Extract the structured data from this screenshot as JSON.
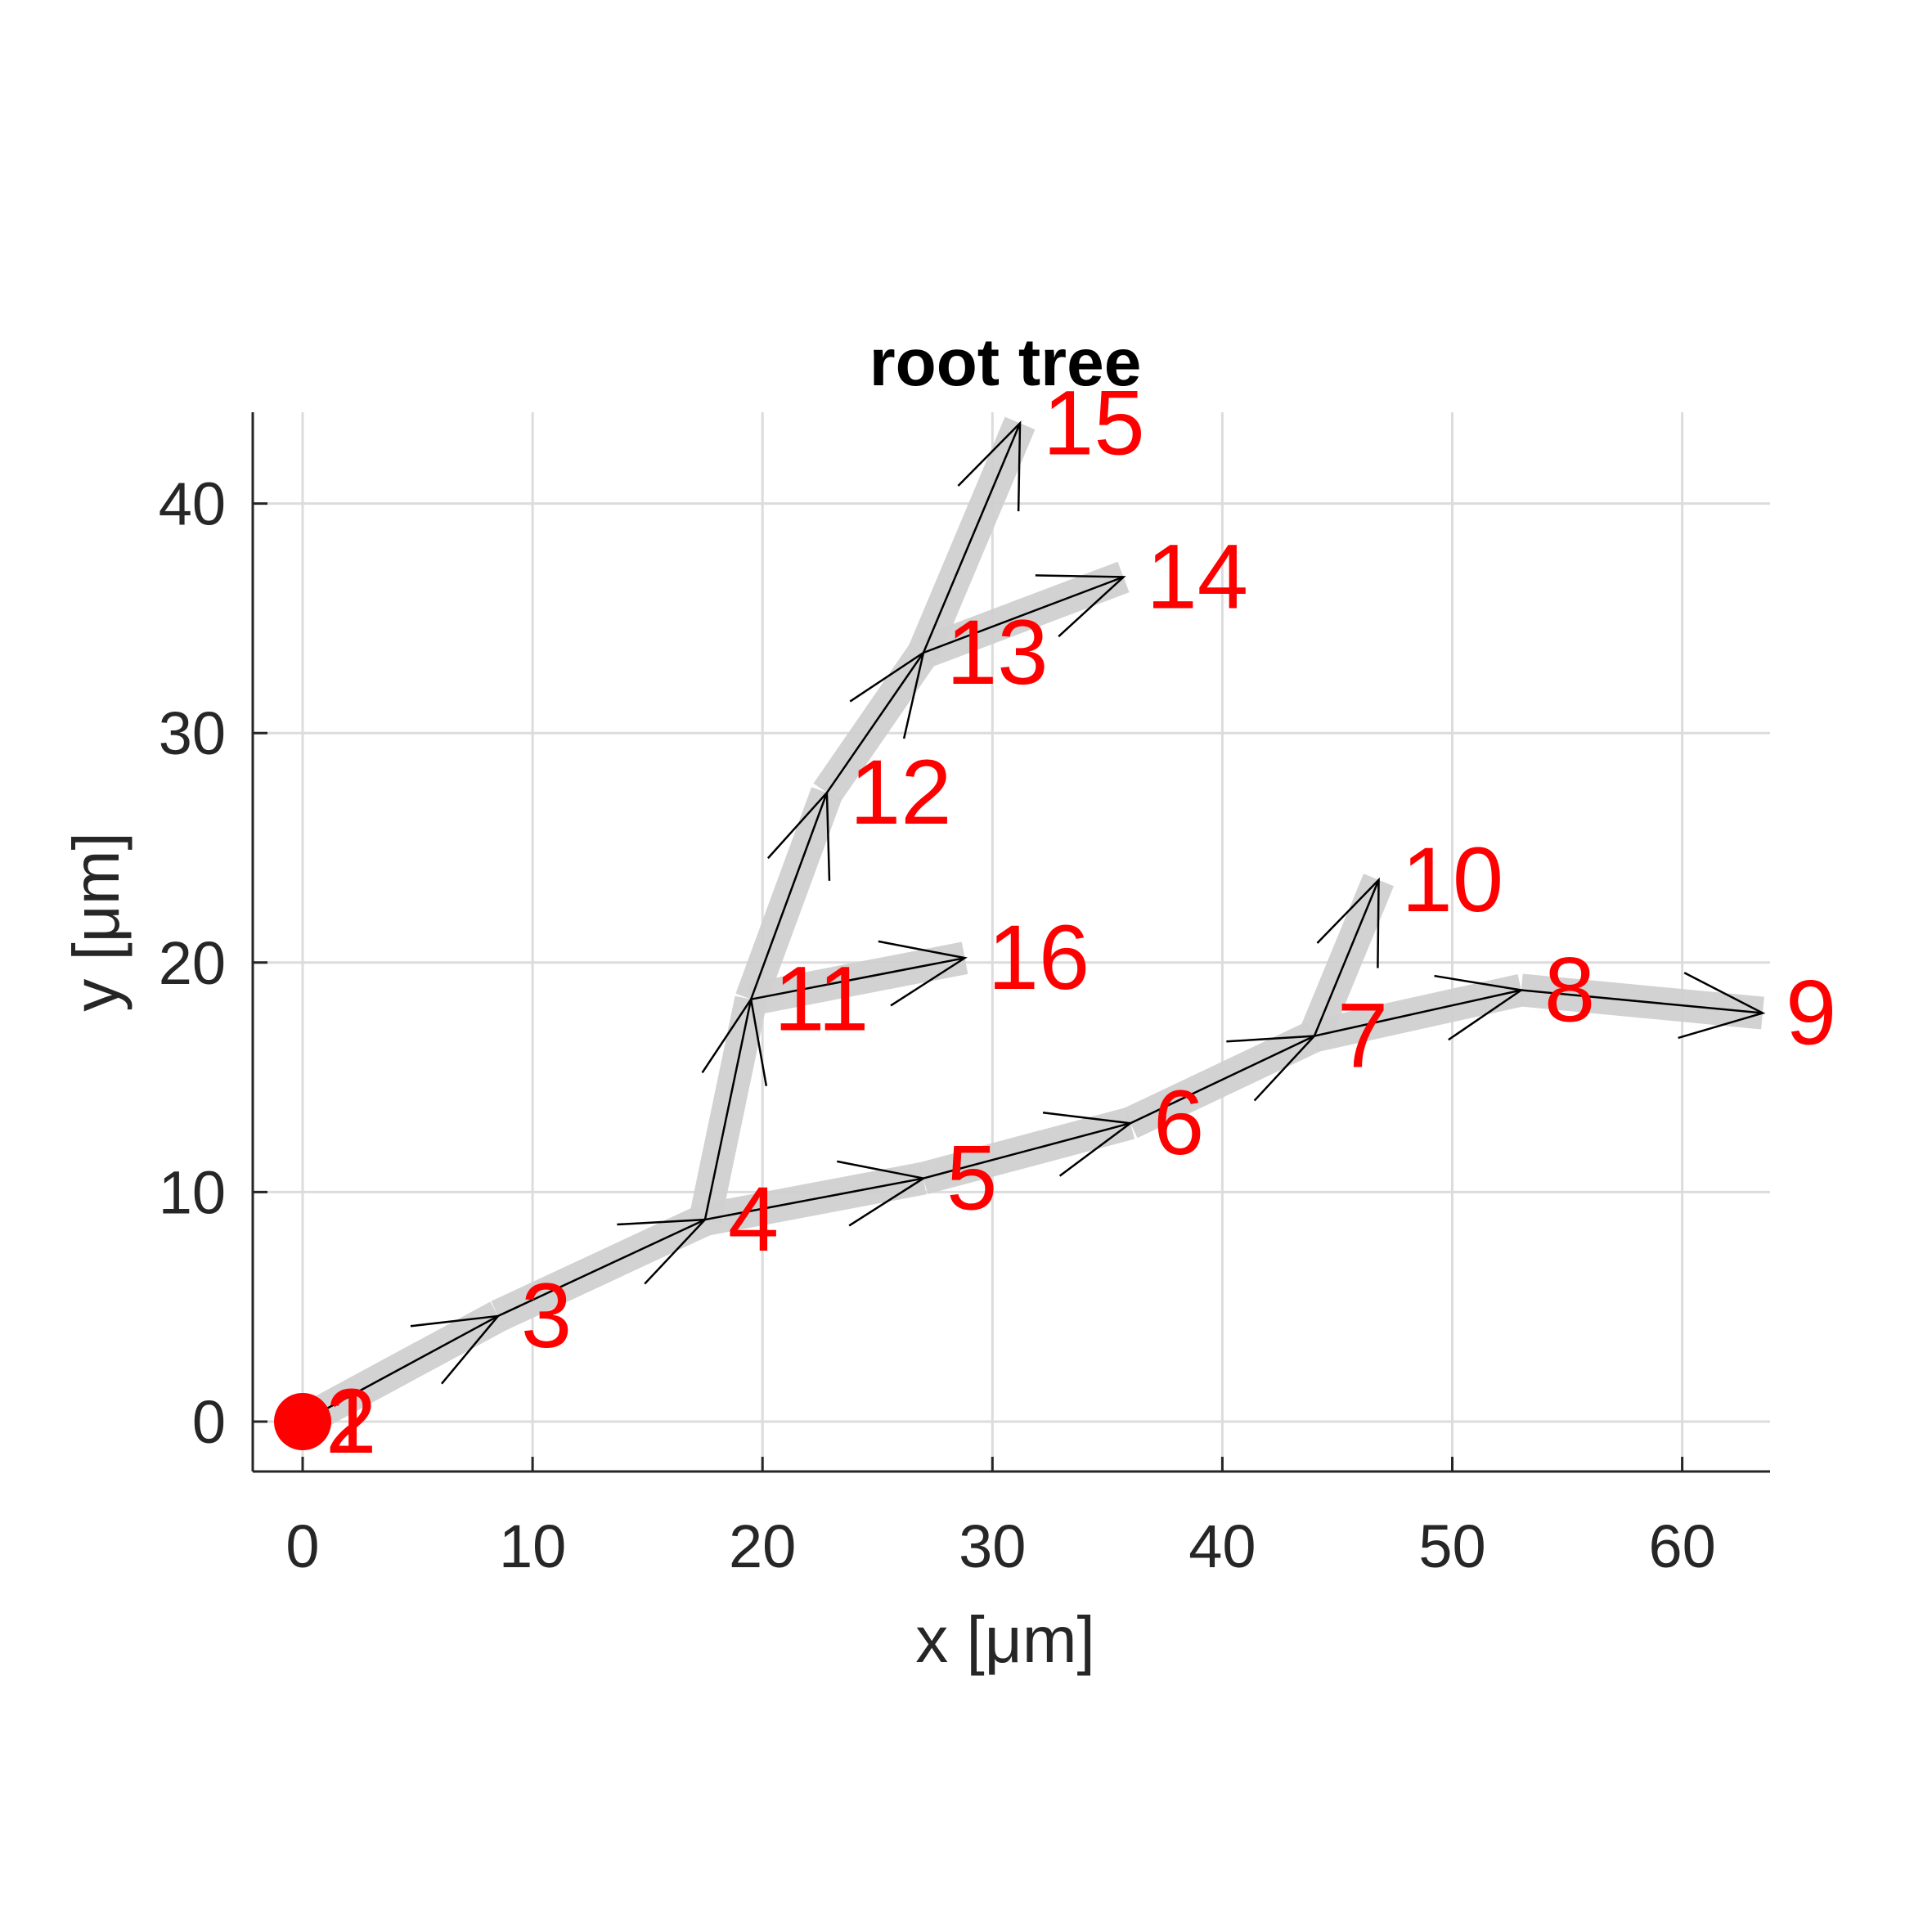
{
  "chart_data": {
    "type": "tree-graph",
    "title": "root tree",
    "xlabel": "x [μm]",
    "ylabel": "y [μm]",
    "xlim": [
      -2.2,
      63.8
    ],
    "ylim": [
      -2.2,
      44
    ],
    "xticks": [
      0,
      10,
      20,
      30,
      40,
      50,
      60
    ],
    "yticks": [
      0,
      10,
      20,
      30,
      40
    ],
    "grid": true,
    "root_node": "1",
    "colors": {
      "node_label": "#ff0000",
      "root_marker": "#ff0000",
      "segment_fill": "#d0d0d0",
      "edge_arrow": "#000000",
      "grid": "#dcdcdc",
      "axis": "#262626"
    },
    "nodes": [
      {
        "id": "1",
        "label": "1",
        "x": 0.0,
        "y": 0.0
      },
      {
        "id": "2",
        "label": "2",
        "x": 0.0,
        "y": 0.0
      },
      {
        "id": "3",
        "label": "3",
        "x": 8.5,
        "y": 4.6
      },
      {
        "id": "4",
        "label": "4",
        "x": 17.5,
        "y": 8.8
      },
      {
        "id": "5",
        "label": "5",
        "x": 27.0,
        "y": 10.6
      },
      {
        "id": "6",
        "label": "6",
        "x": 36.0,
        "y": 13.0
      },
      {
        "id": "7",
        "label": "7",
        "x": 44.0,
        "y": 16.8
      },
      {
        "id": "8",
        "label": "8",
        "x": 53.0,
        "y": 18.8
      },
      {
        "id": "9",
        "label": "9",
        "x": 63.5,
        "y": 17.8
      },
      {
        "id": "10",
        "label": "10",
        "x": 46.8,
        "y": 23.6
      },
      {
        "id": "11",
        "label": "11",
        "x": 19.5,
        "y": 18.4
      },
      {
        "id": "12",
        "label": "12",
        "x": 22.8,
        "y": 27.4
      },
      {
        "id": "13",
        "label": "13",
        "x": 27.0,
        "y": 33.5
      },
      {
        "id": "14",
        "label": "14",
        "x": 35.7,
        "y": 36.8
      },
      {
        "id": "15",
        "label": "15",
        "x": 31.2,
        "y": 43.5
      },
      {
        "id": "16",
        "label": "16",
        "x": 28.8,
        "y": 20.2
      }
    ],
    "edges": [
      {
        "from": "2",
        "to": "3"
      },
      {
        "from": "3",
        "to": "4"
      },
      {
        "from": "4",
        "to": "5"
      },
      {
        "from": "5",
        "to": "6"
      },
      {
        "from": "6",
        "to": "7"
      },
      {
        "from": "7",
        "to": "8"
      },
      {
        "from": "8",
        "to": "9"
      },
      {
        "from": "7",
        "to": "10"
      },
      {
        "from": "4",
        "to": "11"
      },
      {
        "from": "11",
        "to": "12"
      },
      {
        "from": "12",
        "to": "13"
      },
      {
        "from": "13",
        "to": "14"
      },
      {
        "from": "13",
        "to": "15"
      },
      {
        "from": "11",
        "to": "16"
      }
    ]
  }
}
